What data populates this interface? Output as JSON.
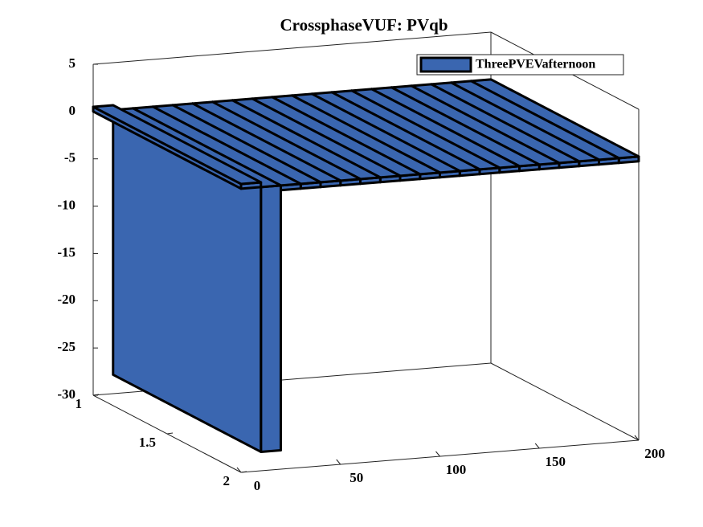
{
  "chart_data": {
    "type": "bar3",
    "title": "CrossphaseVUF: PVqb",
    "x": [
      5,
      15,
      25,
      35,
      45,
      55,
      65,
      75,
      85,
      95,
      105,
      115,
      125,
      135,
      145,
      155,
      165,
      175,
      185,
      195
    ],
    "series": [
      {
        "name": "ThreePVEVafternoon",
        "color": "#3a66b0",
        "values": [
          0.5,
          -28,
          -0.5,
          -0.5,
          -0.5,
          -0.5,
          -0.5,
          -0.5,
          -0.5,
          -0.5,
          -0.5,
          -0.5,
          -0.5,
          -0.5,
          -0.5,
          -0.5,
          -0.5,
          -0.5,
          -0.5,
          -0.5
        ]
      }
    ],
    "xlim": [
      0,
      200
    ],
    "xticks": [
      0,
      50,
      100,
      150,
      200
    ],
    "ylim": [
      1,
      2
    ],
    "yticks": [
      1,
      1.5,
      2
    ],
    "zlim": [
      -30,
      5
    ],
    "zticks": [
      -30,
      -25,
      -20,
      -15,
      -10,
      -5,
      0,
      5
    ],
    "legend": "top-right"
  }
}
